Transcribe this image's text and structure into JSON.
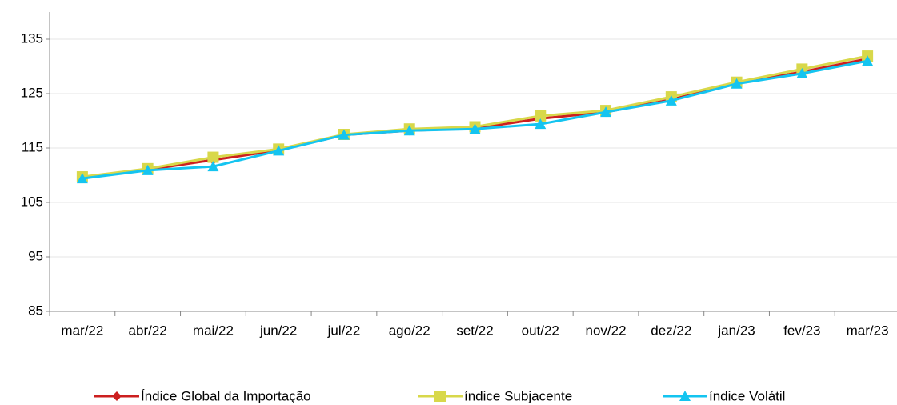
{
  "chart_data": {
    "type": "line",
    "categories": [
      "mar/22",
      "abr/22",
      "mai/22",
      "jun/22",
      "jul/22",
      "ago/22",
      "set/22",
      "out/22",
      "nov/22",
      "dez/22",
      "jan/23",
      "fev/23",
      "mar/23"
    ],
    "series": [
      {
        "name": "Índice Global da Importação",
        "color": "#cc1f1f",
        "marker": "diamond",
        "values": [
          109.6,
          111.0,
          112.8,
          114.6,
          117.4,
          118.2,
          118.6,
          120.4,
          121.6,
          123.9,
          126.9,
          129.0,
          131.4
        ]
      },
      {
        "name": "índice Subjacente",
        "color": "#d8d84a",
        "marker": "square",
        "values": [
          109.7,
          111.2,
          113.3,
          114.8,
          117.5,
          118.5,
          118.9,
          120.9,
          121.9,
          124.4,
          127.1,
          129.5,
          131.9
        ]
      },
      {
        "name": "índice Volátil",
        "color": "#14c4f0",
        "marker": "triangle",
        "values": [
          109.4,
          110.9,
          111.6,
          114.5,
          117.4,
          118.2,
          118.5,
          119.4,
          121.6,
          123.7,
          126.8,
          128.7,
          131.0
        ]
      }
    ],
    "ylim": [
      85,
      140
    ],
    "yticks": [
      85,
      95,
      105,
      115,
      125,
      135
    ],
    "grid": true,
    "legend": "bottom"
  }
}
